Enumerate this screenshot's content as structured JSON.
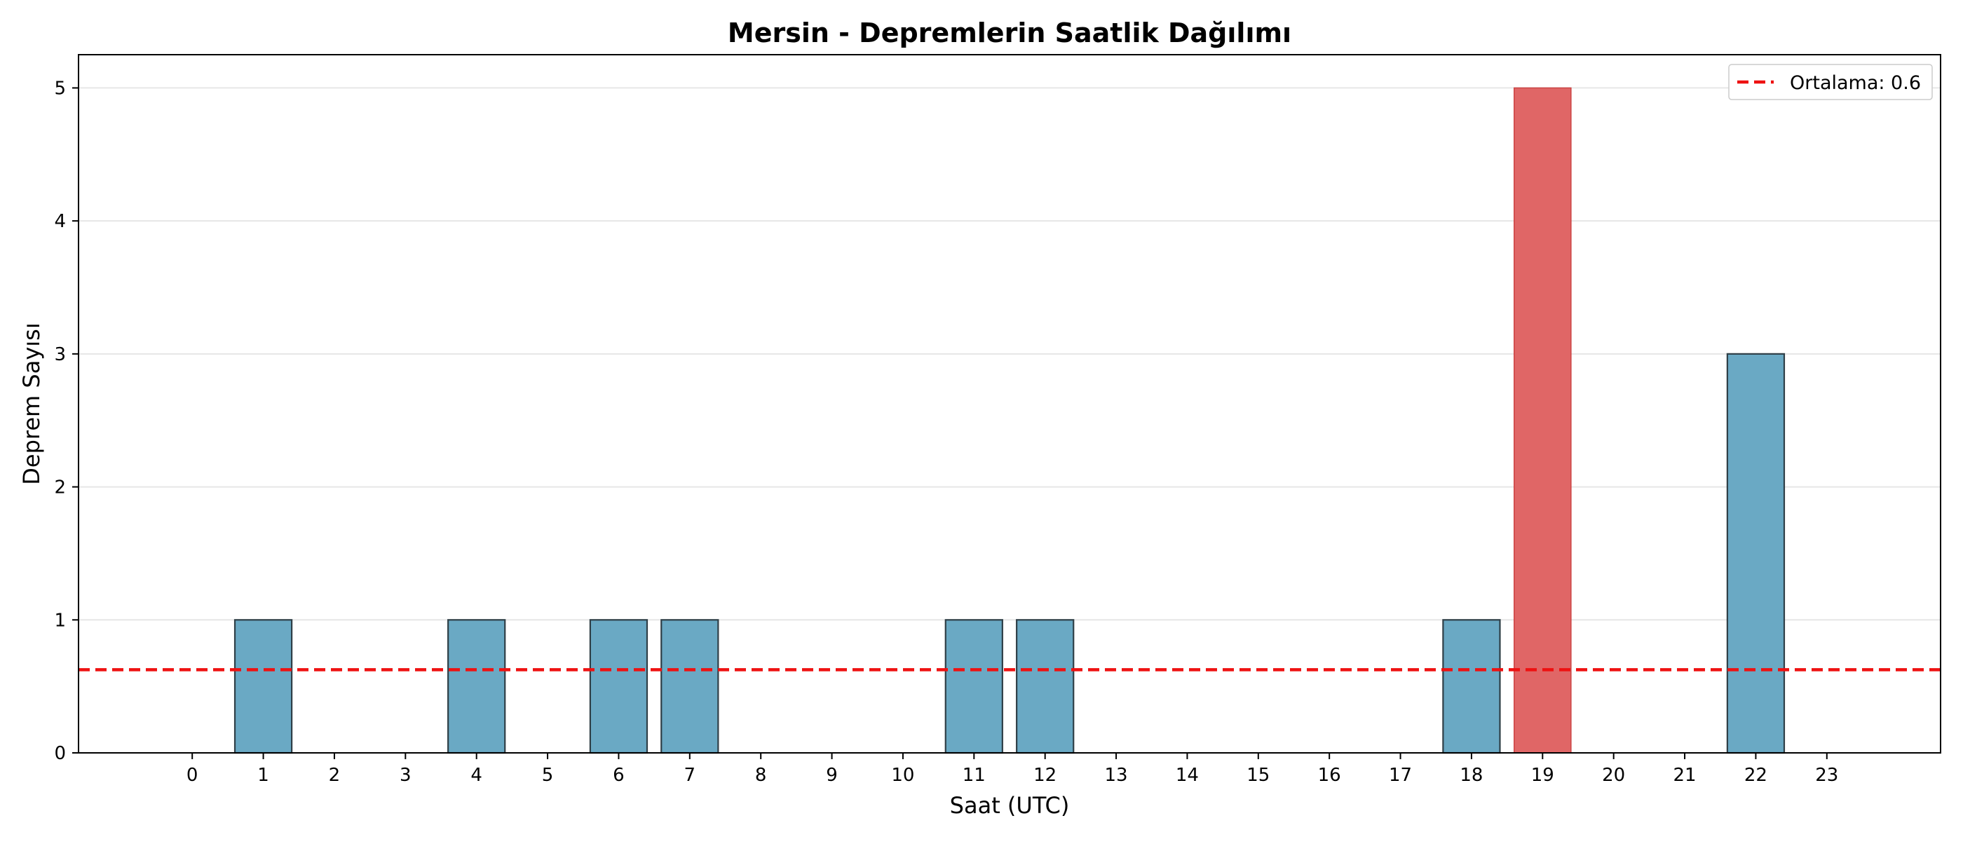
{
  "chart_data": {
    "type": "bar",
    "title": "Mersin - Depremlerin Saatlik Dağılımı",
    "xlabel": "Saat (UTC)",
    "ylabel": "Deprem Sayısı",
    "categories": [
      "0",
      "1",
      "2",
      "3",
      "4",
      "5",
      "6",
      "7",
      "8",
      "9",
      "10",
      "11",
      "12",
      "13",
      "14",
      "15",
      "16",
      "17",
      "18",
      "19",
      "20",
      "21",
      "22",
      "23"
    ],
    "values": [
      0,
      1,
      0,
      0,
      1,
      0,
      1,
      1,
      0,
      0,
      0,
      1,
      1,
      0,
      0,
      0,
      0,
      0,
      1,
      5,
      0,
      0,
      3,
      0
    ],
    "highlight_index": 19,
    "ylim": [
      0,
      5.25
    ],
    "xlim": [
      -1.6,
      24.6
    ],
    "yticks": [
      0,
      1,
      2,
      3,
      4,
      5
    ],
    "grid": "y",
    "colors": {
      "bar": "#6aa9c4",
      "bar_edge": "#2f3f47",
      "highlight": "#e06666",
      "highlight_edge": "#cc4444",
      "mean_line": "#ee1111",
      "grid": "#e6e6e6"
    },
    "mean": {
      "value": 0.625,
      "label": "Ortalama: 0.6",
      "style": "dashed"
    },
    "legend_position": "top-right"
  }
}
